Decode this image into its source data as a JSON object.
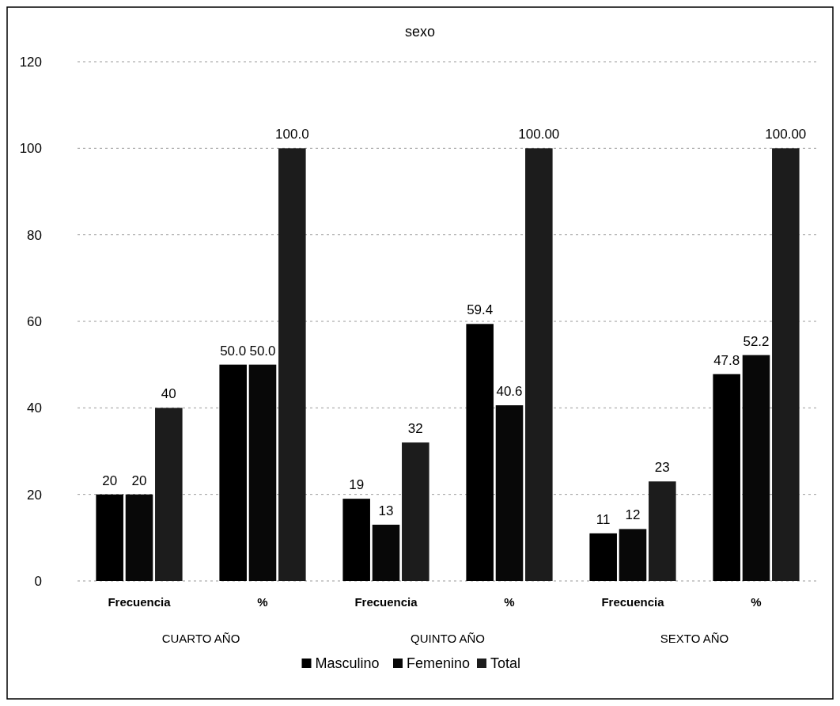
{
  "chart_data": {
    "type": "bar",
    "title": "sexo",
    "categories": [
      "Frecuencia",
      "%",
      "Frecuencia",
      "%",
      "Frecuencia",
      "%"
    ],
    "series": [
      {
        "name": "Masculino",
        "color": "#000000",
        "values": [
          20,
          50,
          19,
          59.4,
          11,
          47.8
        ],
        "value_labels": [
          "20",
          "50.0",
          "19",
          "59.4",
          "11",
          "47.8"
        ]
      },
      {
        "name": "Femenino",
        "color": "#080808",
        "values": [
          20,
          50,
          13,
          40.6,
          12,
          52.2
        ],
        "value_labels": [
          "20",
          "50.0",
          "13",
          "40.6",
          "12",
          "52.2"
        ]
      },
      {
        "name": "Total",
        "color": "#1c1c1c",
        "values": [
          40,
          100,
          32,
          100,
          23,
          100
        ],
        "value_labels": [
          "40",
          "100.0",
          "32",
          "100.00",
          "23",
          "100.00"
        ]
      }
    ],
    "annotations": [
      "CUARTO AÑO",
      "QUINTO AÑO",
      "SEXTO AÑO"
    ],
    "ylim": [
      0,
      120
    ],
    "yticks": [
      0,
      20,
      40,
      60,
      80,
      100,
      120
    ],
    "grid": "y",
    "legend": "bottom"
  }
}
